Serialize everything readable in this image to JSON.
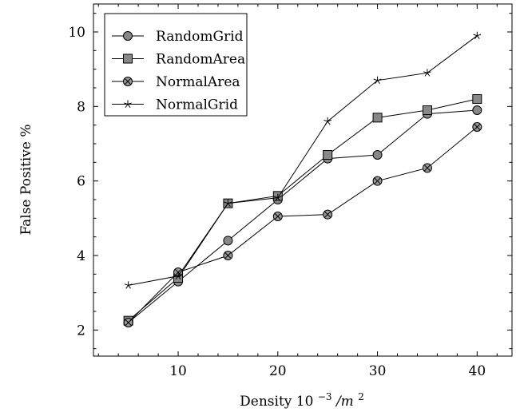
{
  "chart_data": {
    "type": "line",
    "xlabel": {
      "text": "Density ",
      "exp_base": "10",
      "exp_power": "−3",
      "unit": "/m",
      "unit_power": "2"
    },
    "ylabel": "False Positive %",
    "xlim": [
      1.5,
      43.5
    ],
    "ylim": [
      1.3,
      10.75
    ],
    "x_ticks": [
      10,
      20,
      30,
      40
    ],
    "y_ticks": [
      2,
      4,
      6,
      8,
      10
    ],
    "grid": false,
    "legend_position": "top-left",
    "x": [
      5,
      10,
      15,
      20,
      25,
      30,
      35,
      40
    ],
    "series": [
      {
        "name": "RandomGrid",
        "marker": "circle",
        "fill": "#888888",
        "values": [
          2.2,
          3.3,
          4.4,
          5.5,
          6.6,
          6.7,
          7.8,
          7.9
        ]
      },
      {
        "name": "RandomArea",
        "marker": "square",
        "fill": "#888888",
        "values": [
          2.25,
          3.4,
          5.4,
          5.6,
          6.7,
          7.7,
          7.9,
          8.2
        ]
      },
      {
        "name": "NormalArea",
        "marker": "otimes",
        "fill": "#999999",
        "values": [
          2.2,
          3.55,
          4.0,
          5.05,
          5.1,
          6.0,
          6.35,
          7.45
        ]
      },
      {
        "name": "NormalGrid",
        "marker": "star",
        "fill": "#000000",
        "values": [
          3.2,
          3.45,
          5.4,
          5.55,
          7.6,
          8.7,
          8.9,
          9.9
        ]
      }
    ]
  }
}
